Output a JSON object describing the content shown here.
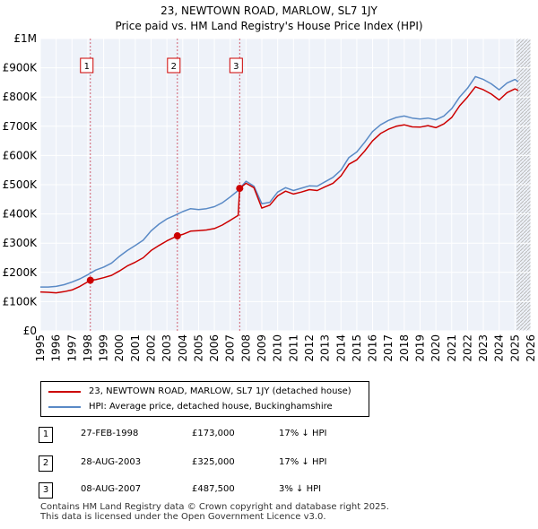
{
  "title_line1": "23, NEWTOWN ROAD, MARLOW, SL7 1JY",
  "title_line2": "Price paid vs. HM Land Registry's House Price Index (HPI)",
  "chart_data": {
    "type": "line",
    "x_label": "",
    "y_label": "",
    "x_range": [
      1995,
      2026
    ],
    "y_range": [
      0,
      1000000
    ],
    "y_ticks": [
      {
        "value": 0,
        "label": "£0"
      },
      {
        "value": 100000,
        "label": "£100K"
      },
      {
        "value": 200000,
        "label": "£200K"
      },
      {
        "value": 300000,
        "label": "£300K"
      },
      {
        "value": 400000,
        "label": "£400K"
      },
      {
        "value": 500000,
        "label": "£500K"
      },
      {
        "value": 600000,
        "label": "£600K"
      },
      {
        "value": 700000,
        "label": "£700K"
      },
      {
        "value": 800000,
        "label": "£800K"
      },
      {
        "value": 900000,
        "label": "£900K"
      },
      {
        "value": 1000000,
        "label": "£1M"
      }
    ],
    "x_ticks": [
      "1995",
      "1996",
      "1997",
      "1998",
      "1999",
      "2000",
      "2001",
      "2002",
      "2003",
      "2004",
      "2005",
      "2006",
      "2007",
      "2008",
      "2009",
      "2010",
      "2011",
      "2012",
      "2013",
      "2014",
      "2015",
      "2016",
      "2017",
      "2018",
      "2019",
      "2020",
      "2021",
      "2022",
      "2023",
      "2024",
      "2025",
      "2026"
    ],
    "series": [
      {
        "name": "23, NEWTOWN ROAD, MARLOW, SL7 1JY (detached house)",
        "color": "#cc0000",
        "points": [
          [
            1995.0,
            133000
          ],
          [
            1995.5,
            132000
          ],
          [
            1996.0,
            130000
          ],
          [
            1996.5,
            134000
          ],
          [
            1997.0,
            140000
          ],
          [
            1997.5,
            152000
          ],
          [
            1998.16,
            173000
          ],
          [
            1998.5,
            175000
          ],
          [
            1999.0,
            182000
          ],
          [
            1999.5,
            190000
          ],
          [
            2000.0,
            205000
          ],
          [
            2000.5,
            222000
          ],
          [
            2001.0,
            235000
          ],
          [
            2001.5,
            250000
          ],
          [
            2002.0,
            275000
          ],
          [
            2002.5,
            292000
          ],
          [
            2003.0,
            308000
          ],
          [
            2003.66,
            325000
          ],
          [
            2004.0,
            330000
          ],
          [
            2004.5,
            341000
          ],
          [
            2005.0,
            343000
          ],
          [
            2005.5,
            345000
          ],
          [
            2006.0,
            350000
          ],
          [
            2006.5,
            362000
          ],
          [
            2007.0,
            378000
          ],
          [
            2007.5,
            395000
          ],
          [
            2007.6,
            487500
          ],
          [
            2008.0,
            505000
          ],
          [
            2008.5,
            490000
          ],
          [
            2009.0,
            420000
          ],
          [
            2009.5,
            430000
          ],
          [
            2010.0,
            462000
          ],
          [
            2010.5,
            478000
          ],
          [
            2011.0,
            468000
          ],
          [
            2011.5,
            475000
          ],
          [
            2012.0,
            483000
          ],
          [
            2012.5,
            480000
          ],
          [
            2013.0,
            493000
          ],
          [
            2013.5,
            505000
          ],
          [
            2014.0,
            530000
          ],
          [
            2014.5,
            570000
          ],
          [
            2015.0,
            585000
          ],
          [
            2015.5,
            615000
          ],
          [
            2016.0,
            650000
          ],
          [
            2016.5,
            675000
          ],
          [
            2017.0,
            690000
          ],
          [
            2017.5,
            700000
          ],
          [
            2018.0,
            705000
          ],
          [
            2018.5,
            698000
          ],
          [
            2019.0,
            697000
          ],
          [
            2019.5,
            702000
          ],
          [
            2020.0,
            695000
          ],
          [
            2020.5,
            708000
          ],
          [
            2021.0,
            730000
          ],
          [
            2021.5,
            770000
          ],
          [
            2022.0,
            800000
          ],
          [
            2022.5,
            835000
          ],
          [
            2023.0,
            825000
          ],
          [
            2023.5,
            810000
          ],
          [
            2024.0,
            790000
          ],
          [
            2024.5,
            815000
          ],
          [
            2025.0,
            828000
          ],
          [
            2025.2,
            822000
          ]
        ]
      },
      {
        "name": "HPI: Average price, detached house, Buckinghamshire",
        "color": "#5a8ac6",
        "points": [
          [
            1995.0,
            150000
          ],
          [
            1995.5,
            150000
          ],
          [
            1996.0,
            152000
          ],
          [
            1996.5,
            158000
          ],
          [
            1997.0,
            167000
          ],
          [
            1997.5,
            178000
          ],
          [
            1998.0,
            192000
          ],
          [
            1998.5,
            208000
          ],
          [
            1999.0,
            218000
          ],
          [
            1999.5,
            232000
          ],
          [
            2000.0,
            255000
          ],
          [
            2000.5,
            275000
          ],
          [
            2001.0,
            292000
          ],
          [
            2001.5,
            310000
          ],
          [
            2002.0,
            342000
          ],
          [
            2002.5,
            365000
          ],
          [
            2003.0,
            383000
          ],
          [
            2003.5,
            395000
          ],
          [
            2004.0,
            408000
          ],
          [
            2004.5,
            418000
          ],
          [
            2005.0,
            415000
          ],
          [
            2005.5,
            418000
          ],
          [
            2006.0,
            425000
          ],
          [
            2006.5,
            438000
          ],
          [
            2007.0,
            458000
          ],
          [
            2007.5,
            480000
          ],
          [
            2008.0,
            512000
          ],
          [
            2008.5,
            495000
          ],
          [
            2009.0,
            435000
          ],
          [
            2009.5,
            440000
          ],
          [
            2010.0,
            475000
          ],
          [
            2010.5,
            490000
          ],
          [
            2011.0,
            480000
          ],
          [
            2011.5,
            488000
          ],
          [
            2012.0,
            496000
          ],
          [
            2012.5,
            495000
          ],
          [
            2013.0,
            510000
          ],
          [
            2013.5,
            525000
          ],
          [
            2014.0,
            550000
          ],
          [
            2014.5,
            593000
          ],
          [
            2015.0,
            612000
          ],
          [
            2015.5,
            645000
          ],
          [
            2016.0,
            682000
          ],
          [
            2016.5,
            705000
          ],
          [
            2017.0,
            720000
          ],
          [
            2017.5,
            730000
          ],
          [
            2018.0,
            735000
          ],
          [
            2018.5,
            728000
          ],
          [
            2019.0,
            725000
          ],
          [
            2019.5,
            728000
          ],
          [
            2020.0,
            722000
          ],
          [
            2020.5,
            735000
          ],
          [
            2021.0,
            760000
          ],
          [
            2021.5,
            800000
          ],
          [
            2022.0,
            830000
          ],
          [
            2022.5,
            870000
          ],
          [
            2023.0,
            860000
          ],
          [
            2023.5,
            845000
          ],
          [
            2024.0,
            825000
          ],
          [
            2024.5,
            848000
          ],
          [
            2025.0,
            860000
          ],
          [
            2025.2,
            852000
          ]
        ]
      }
    ],
    "sales": [
      {
        "num": "1",
        "x": 1998.16,
        "value": 173000
      },
      {
        "num": "2",
        "x": 2003.66,
        "value": 325000
      },
      {
        "num": "3",
        "x": 2007.6,
        "value": 487500
      }
    ],
    "hatch_from": 2025.1,
    "grid": true
  },
  "legend": {
    "property_label": "23, NEWTOWN ROAD, MARLOW, SL7 1JY (detached house)",
    "hpi_label": "HPI: Average price, detached house, Buckinghamshire",
    "property_color": "#cc0000",
    "hpi_color": "#5a8ac6"
  },
  "sales_table": [
    {
      "num": "1",
      "date": "27-FEB-1998",
      "price": "£173,000",
      "hpi": "17% ↓ HPI"
    },
    {
      "num": "2",
      "date": "28-AUG-2003",
      "price": "£325,000",
      "hpi": "17% ↓ HPI"
    },
    {
      "num": "3",
      "date": "08-AUG-2007",
      "price": "£487,500",
      "hpi": "3% ↓ HPI"
    }
  ],
  "footer": {
    "line1": "Contains HM Land Registry data © Crown copyright and database right 2025.",
    "line2": "This data is licensed under the Open Government Licence v3.0."
  }
}
